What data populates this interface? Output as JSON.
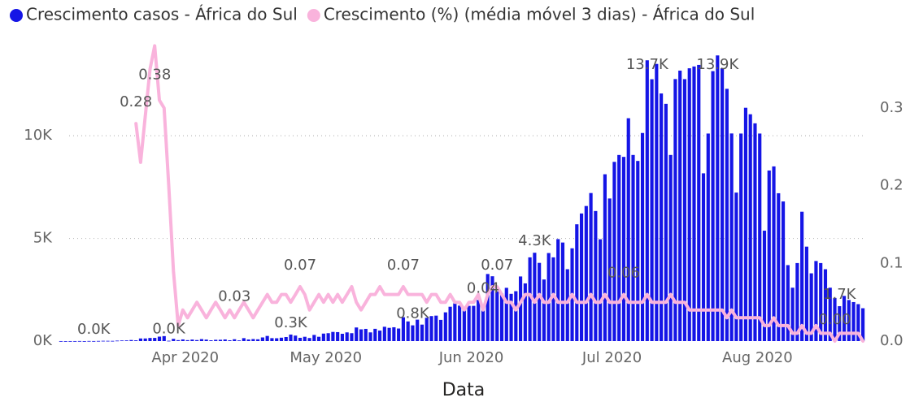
{
  "chart_data": {
    "type": "bar_line",
    "x_label": "Data",
    "categories": [
      null,
      null,
      null,
      null,
      null,
      null,
      null,
      null,
      null,
      null,
      null,
      null,
      null,
      null,
      null,
      null,
      null,
      null,
      null,
      null,
      null,
      null,
      null,
      null,
      null,
      null,
      null,
      null,
      null,
      null,
      null,
      null,
      null,
      null,
      null,
      null,
      null,
      null,
      null,
      null,
      null,
      null,
      null,
      null,
      null,
      null,
      null,
      null,
      null,
      null,
      null,
      null,
      null,
      null,
      null,
      null,
      null,
      null,
      null,
      null,
      null,
      null,
      null,
      null,
      null,
      null,
      null,
      null,
      null,
      null,
      null,
      null,
      null,
      null,
      null,
      null,
      null,
      null,
      null,
      null,
      null,
      null,
      null,
      null,
      null,
      null,
      null,
      null,
      null,
      null,
      null,
      null,
      null,
      null,
      null,
      null,
      null,
      null,
      null,
      null,
      null,
      null,
      null,
      null,
      null,
      null,
      null,
      null,
      null,
      null,
      null,
      null,
      null,
      null,
      null,
      null,
      null,
      null,
      null,
      null,
      null,
      null,
      null,
      null,
      null,
      null,
      null,
      null,
      null,
      null,
      null,
      null,
      null,
      null,
      null,
      null,
      null,
      null,
      null,
      null,
      null,
      null,
      null,
      null,
      null,
      null,
      null,
      null,
      null,
      null,
      null,
      null,
      null,
      null,
      null,
      null,
      null,
      null,
      null,
      null,
      null,
      null,
      null,
      null,
      null,
      null,
      null,
      null,
      null,
      null,
      null,
      null
    ],
    "xticks": [
      {
        "value": 27,
        "label": "Apr 2020"
      },
      {
        "value": 57,
        "label": "May 2020"
      },
      {
        "value": 88,
        "label": "Jun 2020"
      },
      {
        "value": 118,
        "label": "Jul 2020"
      },
      {
        "value": 149,
        "label": "Aug 2020"
      }
    ],
    "ylim": [
      0,
      14000
    ],
    "yticks": [
      {
        "value": 0,
        "label": "0K"
      },
      {
        "value": 5000,
        "label": "5K"
      },
      {
        "value": 10000,
        "label": "10K"
      }
    ],
    "y2lim": [
      0,
      0.37
    ],
    "y2ticks": [
      {
        "value": 0,
        "label": "0.0"
      },
      0.1,
      0.2,
      0.3
    ],
    "grid": true,
    "legend": "top",
    "series": [
      {
        "name": "Crescimento casos - África do Sul",
        "kind": "bar",
        "color": "#1515e6",
        "values": [
          1,
          0,
          1,
          1,
          4,
          0,
          6,
          3,
          8,
          14,
          13,
          11,
          23,
          31,
          34,
          52,
          38,
          128,
          128,
          152,
          155,
          218,
          243,
          17,
          109,
          46,
          82,
          46,
          74,
          50,
          96,
          72,
          39,
          63,
          64,
          80,
          40,
          90,
          34,
          143,
          78,
          99,
          87,
          178,
          251,
          143,
          138,
          165,
          198,
          318,
          267,
          160,
          210,
          150,
          300,
          210,
          365,
          385,
          447,
          437,
          356,
          424,
          385,
          663,
          572,
          595,
          424,
          598,
          511,
          698,
          645,
          673,
          612,
          1160,
          958,
          767,
          1044,
          803,
          1134,
          1218,
          1240,
          1032,
          1400,
          1673,
          1837,
          1727,
          1605,
          1716,
          1716,
          2002,
          1523,
          3267,
          3157,
          2426,
          2312,
          2594,
          2302,
          2430,
          3147,
          2810,
          4078,
          4302,
          3809,
          3000,
          4288,
          4078,
          4966,
          4800,
          3500,
          4518,
          5688,
          6215,
          6579,
          7210,
          6334,
          4958,
          8124,
          6945,
          8728,
          9063,
          8971,
          10853,
          9064,
          8773,
          10134,
          13674,
          12752,
          13497,
          12058,
          11554,
          9064,
          12760,
          13172,
          12757,
          13285,
          13373,
          13449,
          8170,
          10107,
          13146,
          13911,
          13285,
          12285,
          10111,
          7232,
          10107,
          11362,
          11046,
          10604,
          10107,
          5377,
          8307,
          8507,
          7200,
          6800,
          3700,
          2600,
          3800,
          6300,
          4600,
          3300,
          3900,
          3800,
          3500,
          2600,
          2100,
          1700,
          2200,
          2000,
          1900,
          1800,
          1600
        ],
        "value_labels": [
          null,
          null,
          null,
          null,
          null,
          null,
          null,
          "0.0K",
          null,
          null,
          null,
          null,
          null,
          null,
          null,
          null,
          null,
          null,
          null,
          null,
          null,
          null,
          null,
          "0.0K",
          null,
          null,
          null,
          null,
          null,
          null,
          null,
          null,
          null,
          null,
          null,
          null,
          null,
          null,
          null,
          null,
          null,
          null,
          null,
          null,
          null,
          null,
          null,
          null,
          null,
          "0.3K",
          null,
          null,
          null,
          null,
          null,
          null,
          null,
          null,
          null,
          null,
          null,
          null,
          null,
          null,
          null,
          null,
          null,
          null,
          null,
          null,
          null,
          null,
          null,
          null,
          null,
          "0.8K",
          null,
          null,
          null,
          null,
          null,
          null,
          null,
          null,
          null,
          null,
          null,
          null,
          null,
          null,
          null,
          null,
          null,
          null,
          null,
          null,
          null,
          null,
          null,
          null,
          null,
          "4.3K",
          null,
          null,
          null,
          null,
          null,
          null,
          null,
          null,
          null,
          null,
          null,
          null,
          null,
          null,
          null,
          null,
          null,
          null,
          null,
          null,
          null,
          null,
          null,
          "13.7K",
          null,
          null,
          null,
          null,
          null,
          null,
          null,
          null,
          null,
          null,
          null,
          null,
          null,
          null,
          "13.9K",
          null,
          null,
          null,
          null,
          null,
          null,
          null,
          null,
          null,
          null,
          null,
          null,
          null,
          null,
          null,
          null,
          null,
          null,
          null,
          null,
          null,
          null,
          null,
          null,
          null,
          "1.7K",
          null,
          null,
          null,
          null,
          null
        ]
      },
      {
        "name": "Crescimento (%) (média móvel 3 dias) - África do Sul",
        "kind": "line",
        "axis": "y2",
        "color": "#f9b3dc",
        "values": [
          null,
          null,
          null,
          null,
          null,
          null,
          null,
          null,
          null,
          null,
          null,
          null,
          null,
          null,
          null,
          null,
          0.28,
          0.23,
          0.29,
          0.35,
          0.38,
          0.31,
          0.3,
          0.2,
          0.09,
          0.02,
          0.04,
          0.03,
          0.04,
          0.05,
          0.04,
          0.03,
          0.04,
          0.05,
          0.04,
          0.03,
          0.04,
          0.03,
          0.04,
          0.05,
          0.04,
          0.03,
          0.04,
          0.05,
          0.06,
          0.05,
          0.05,
          0.06,
          0.06,
          0.05,
          0.06,
          0.07,
          0.06,
          0.04,
          0.05,
          0.06,
          0.05,
          0.06,
          0.05,
          0.06,
          0.05,
          0.06,
          0.07,
          0.05,
          0.04,
          0.05,
          0.06,
          0.06,
          0.07,
          0.06,
          0.06,
          0.06,
          0.06,
          0.07,
          0.06,
          0.06,
          0.06,
          0.06,
          0.05,
          0.06,
          0.06,
          0.05,
          0.05,
          0.06,
          0.05,
          0.05,
          0.04,
          0.05,
          0.05,
          0.06,
          0.04,
          0.06,
          0.07,
          0.07,
          0.06,
          0.05,
          0.05,
          0.04,
          0.05,
          0.06,
          0.06,
          0.05,
          0.06,
          0.05,
          0.05,
          0.06,
          0.05,
          0.05,
          0.05,
          0.06,
          0.05,
          0.05,
          0.05,
          0.06,
          0.05,
          0.05,
          0.06,
          0.05,
          0.05,
          0.05,
          0.06,
          0.05,
          0.05,
          0.05,
          0.05,
          0.06,
          0.05,
          0.05,
          0.05,
          0.05,
          0.06,
          0.05,
          0.05,
          0.05,
          0.04,
          0.04,
          0.04,
          0.04,
          0.04,
          0.04,
          0.04,
          0.04,
          0.03,
          0.04,
          0.03,
          0.03,
          0.03,
          0.03,
          0.03,
          0.03,
          0.02,
          0.02,
          0.03,
          0.02,
          0.02,
          0.02,
          0.01,
          0.01,
          0.02,
          0.01,
          0.01,
          0.02,
          0.01,
          0.01,
          0.01,
          0.0,
          0.01,
          0.01,
          0.01,
          0.01,
          0.01,
          0.0
        ],
        "value_labels": [
          null,
          null,
          null,
          null,
          null,
          null,
          null,
          null,
          null,
          null,
          null,
          null,
          null,
          null,
          null,
          null,
          "0.28",
          null,
          null,
          null,
          "0.38",
          null,
          null,
          null,
          null,
          null,
          null,
          null,
          null,
          null,
          null,
          null,
          null,
          null,
          null,
          null,
          null,
          "0.03",
          null,
          null,
          null,
          null,
          null,
          null,
          null,
          null,
          null,
          null,
          null,
          null,
          null,
          "0.07",
          null,
          null,
          null,
          null,
          null,
          null,
          null,
          null,
          null,
          null,
          null,
          null,
          null,
          null,
          null,
          null,
          null,
          null,
          null,
          null,
          null,
          "0.07",
          null,
          null,
          null,
          null,
          null,
          null,
          null,
          null,
          null,
          null,
          null,
          null,
          null,
          null,
          null,
          null,
          "0.04",
          null,
          null,
          "0.07",
          null,
          null,
          null,
          null,
          null,
          null,
          null,
          null,
          null,
          null,
          null,
          null,
          null,
          null,
          null,
          null,
          null,
          null,
          null,
          null,
          null,
          null,
          null,
          null,
          null,
          null,
          "0.06",
          null,
          null,
          null,
          null,
          null,
          null,
          null,
          null,
          null,
          null,
          null,
          null,
          null,
          null,
          null,
          null,
          null,
          null,
          null,
          null,
          null,
          null,
          null,
          null,
          null,
          null,
          null,
          null,
          null,
          null,
          null,
          null,
          null,
          null,
          null,
          null,
          null,
          null,
          null,
          null,
          null,
          null,
          null,
          null,
          "0.00",
          null,
          null,
          null,
          null,
          null,
          null
        ]
      }
    ]
  }
}
